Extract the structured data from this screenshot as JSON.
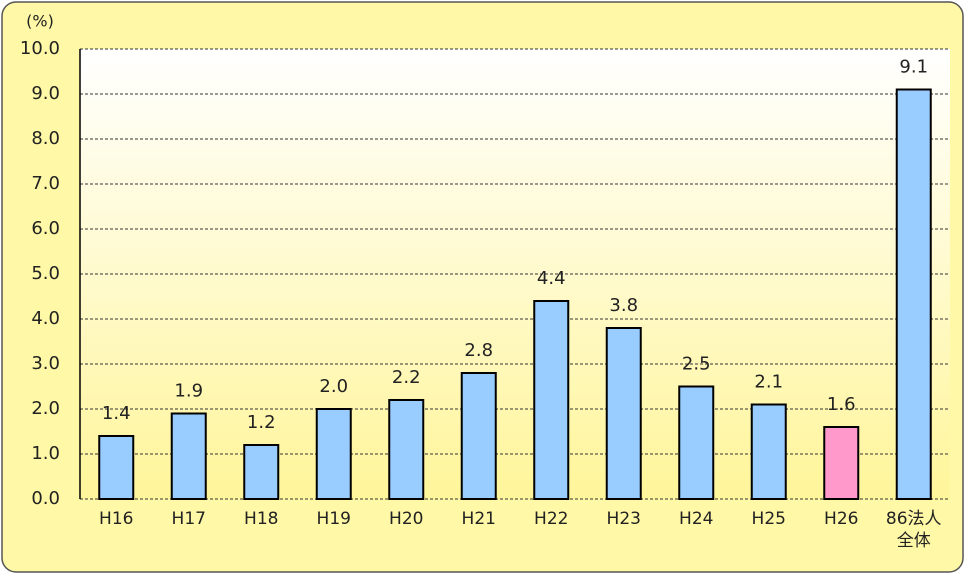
{
  "chart_data": {
    "type": "bar",
    "unit_label": "(%)",
    "categories": [
      "H16",
      "H17",
      "H18",
      "H19",
      "H20",
      "H21",
      "H22",
      "H23",
      "H24",
      "H25",
      "H26",
      "86法人\n全体"
    ],
    "values": [
      1.4,
      1.9,
      1.2,
      2.0,
      2.2,
      2.8,
      4.4,
      3.8,
      2.5,
      2.1,
      1.6,
      9.1
    ],
    "value_labels": [
      "1.4",
      "1.9",
      "1.2",
      "2.0",
      "2.2",
      "2.8",
      "4.4",
      "3.8",
      "2.5",
      "2.1",
      "1.6",
      "9.1"
    ],
    "colors": [
      "#99ccff",
      "#99ccff",
      "#99ccff",
      "#99ccff",
      "#99ccff",
      "#99ccff",
      "#99ccff",
      "#99ccff",
      "#99ccff",
      "#99ccff",
      "#ff99cc",
      "#99ccff"
    ],
    "ylim": [
      0,
      10
    ],
    "yticks": [
      {
        "value": 0,
        "label": "0.0"
      },
      {
        "value": 1,
        "label": "1.0"
      },
      {
        "value": 2,
        "label": "2.0"
      },
      {
        "value": 3,
        "label": "3.0"
      },
      {
        "value": 4,
        "label": "4.0"
      },
      {
        "value": 5,
        "label": "5.0"
      },
      {
        "value": 6,
        "label": "6.0"
      },
      {
        "value": 7,
        "label": "7.0"
      },
      {
        "value": 8,
        "label": "8.0"
      },
      {
        "value": 9,
        "label": "9.0"
      },
      {
        "value": 10,
        "label": "10.0"
      }
    ],
    "grid": true
  }
}
